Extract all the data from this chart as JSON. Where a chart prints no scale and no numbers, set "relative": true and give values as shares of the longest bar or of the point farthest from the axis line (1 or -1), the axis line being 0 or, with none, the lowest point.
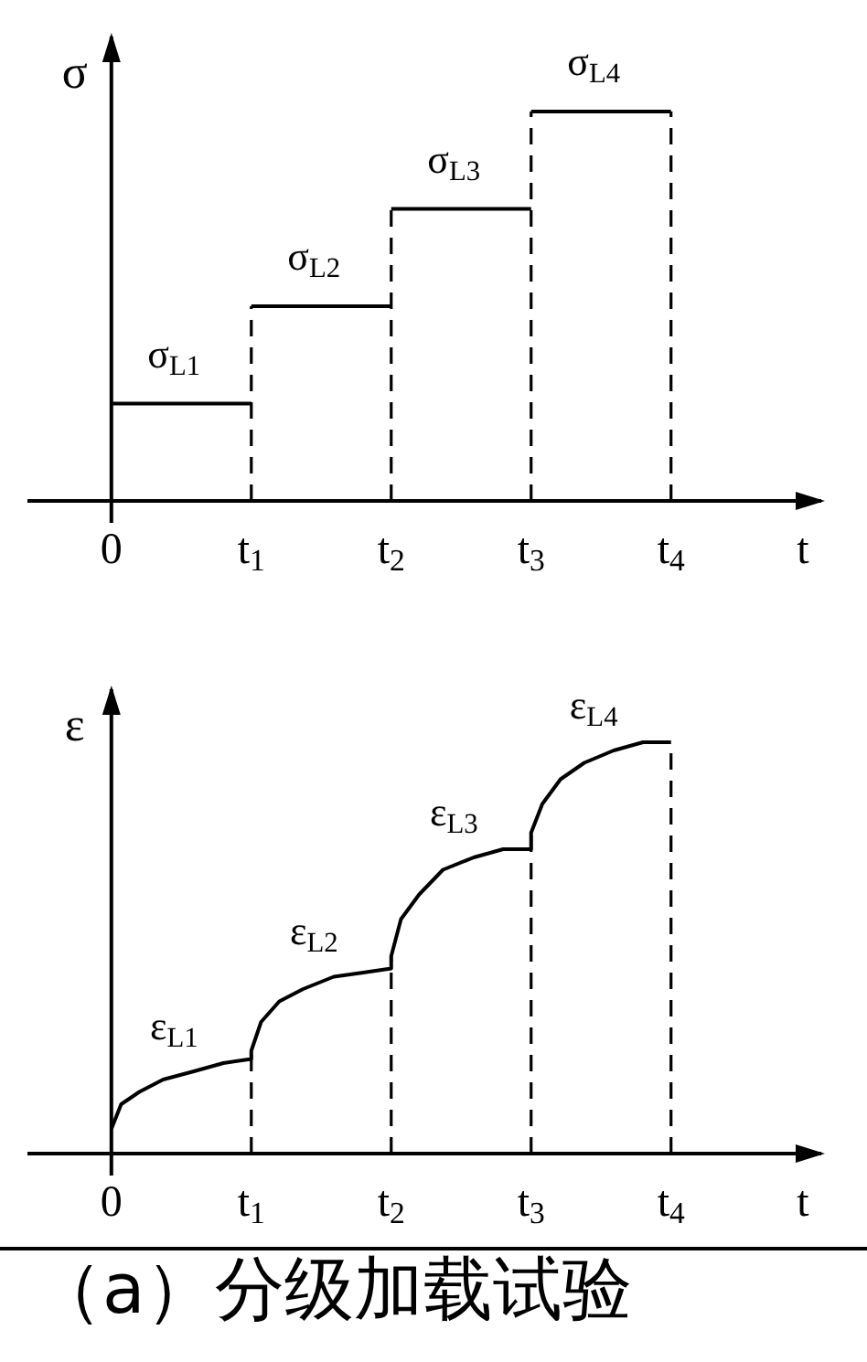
{
  "chart_data": [
    {
      "type": "step",
      "ylabel": "σ",
      "xlabel": "t",
      "relative": true,
      "tick_labels": "x",
      "color": "#000000",
      "x": [
        0,
        1,
        2,
        3,
        4
      ],
      "values": [
        0.25,
        0.5,
        0.75,
        1,
        1
      ],
      "xlim": [
        -0.6,
        5.1
      ],
      "xticks": [
        0,
        {
          "value": 1,
          "label": "t$_{1}$"
        },
        {
          "value": 2,
          "label": "t$_{2}$"
        },
        {
          "value": 3,
          "label": "t$_{3}$"
        },
        {
          "value": 4,
          "label": "t$_{4}$"
        }
      ],
      "ref_lines": [
        {
          "axis": "x",
          "value": 1,
          "line_style": "dashed"
        },
        {
          "axis": "x",
          "value": 2,
          "line_style": "dashed"
        },
        {
          "axis": "x",
          "value": 3,
          "line_style": "dashed"
        },
        {
          "axis": "x",
          "value": 4,
          "line_style": "dashed"
        }
      ],
      "annotations": [
        {
          "text": "σ$_{L1}$",
          "x": 0.5,
          "y": 0.25
        },
        {
          "text": "σ$_{L2}$",
          "x": 1.5,
          "y": 0.5
        },
        {
          "text": "σ$_{L3}$",
          "x": 2.5,
          "y": 0.75
        },
        {
          "text": "σ$_{L4}$",
          "x": 3.5,
          "y": 1
        }
      ]
    },
    {
      "type": "line",
      "ylabel": "ε",
      "xlabel": "t",
      "relative": true,
      "tick_labels": "x",
      "color": "#000000",
      "x": [
        0,
        0.07,
        0.2,
        0.37,
        0.59,
        0.8,
        1,
        1,
        1.07,
        1.2,
        1.37,
        1.59,
        1.8,
        2,
        2,
        2.07,
        2.2,
        2.37,
        2.59,
        2.8,
        3,
        3,
        3.08,
        3.21,
        3.38,
        3.59,
        3.8,
        4
      ],
      "values": [
        0.06,
        0.12,
        0.15,
        0.18,
        0.2,
        0.22,
        0.23,
        0.25,
        0.32,
        0.37,
        0.4,
        0.43,
        0.44,
        0.45,
        0.48,
        0.57,
        0.63,
        0.69,
        0.72,
        0.74,
        0.74,
        0.78,
        0.85,
        0.91,
        0.95,
        0.98,
        1,
        1
      ],
      "xlim": [
        -0.6,
        5.1
      ],
      "xticks": [
        0,
        {
          "value": 1,
          "label": "t$_{1}$"
        },
        {
          "value": 2,
          "label": "t$_{2}$"
        },
        {
          "value": 3,
          "label": "t$_{3}$"
        },
        {
          "value": 4,
          "label": "t$_{4}$"
        }
      ],
      "ref_lines": [
        {
          "axis": "x",
          "value": 1,
          "line_style": "dashed"
        },
        {
          "axis": "x",
          "value": 2,
          "line_style": "dashed"
        },
        {
          "axis": "x",
          "value": 3,
          "line_style": "dashed"
        },
        {
          "axis": "x",
          "value": 4,
          "line_style": "dashed"
        }
      ],
      "annotations": [
        {
          "text": "ε$_{L1}$",
          "x": 0.5,
          "y": 0.19
        },
        {
          "text": "ε$_{L2}$",
          "x": 1.5,
          "y": 0.42
        },
        {
          "text": "ε$_{L3}$",
          "x": 2.5,
          "y": 0.71
        },
        {
          "text": "ε$_{L4}$",
          "x": 3.5,
          "y": 0.97
        },
        "（a）分级加载试验"
      ]
    }
  ]
}
